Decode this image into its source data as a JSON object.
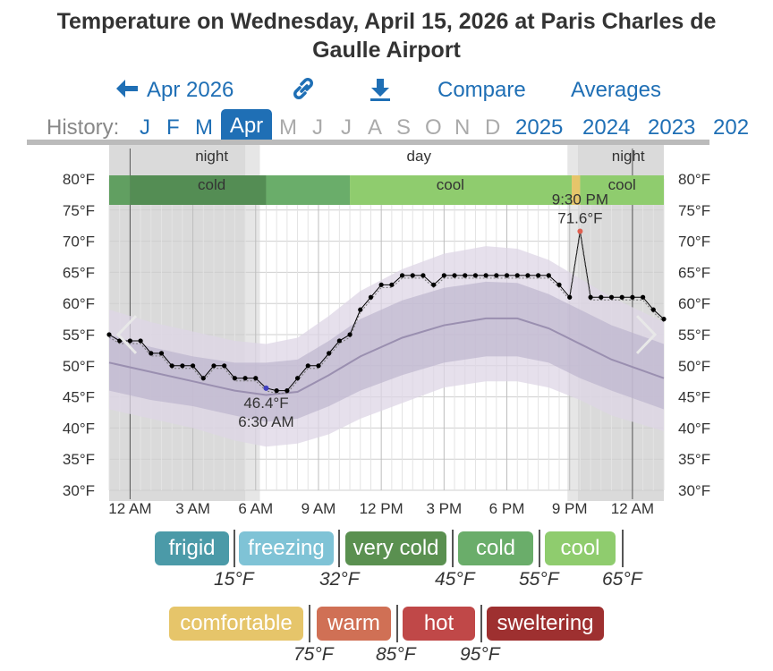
{
  "title_line1": "Temperature on Wednesday, April 15, 2026 at Paris Charles de",
  "title_line2": "Gaulle Airport",
  "nav": {
    "back_label": "Apr 2026",
    "compare_label": "Compare",
    "averages_label": "Averages",
    "link_icon": "link-icon",
    "download_icon": "download-icon"
  },
  "history": {
    "label": "History:",
    "months": [
      "J",
      "F",
      "M",
      "Apr",
      "M",
      "J",
      "J",
      "A",
      "S",
      "O",
      "N",
      "D"
    ],
    "selected": "Apr",
    "years": [
      "2025",
      "2024",
      "2023",
      "202"
    ]
  },
  "colors": {
    "link": "#1f6fb5",
    "night_band": "#d3d3d3",
    "observed": "#000000",
    "normal_line": "#9a8fb0",
    "band_inner": "#b8afc9",
    "band_outer": "#ddd6e6",
    "max_marker": "#e06050",
    "min_marker": "#4040c0"
  },
  "chart_data": {
    "type": "line",
    "title": "Temperature on Wednesday, April 15, 2026 at Paris Charles de Gaulle Airport",
    "ylabel": "",
    "ylim": [
      30,
      80
    ],
    "x_unit": "hours since 11 PM Apr 14",
    "y_ticks": [
      "30°F",
      "35°F",
      "40°F",
      "45°F",
      "50°F",
      "55°F",
      "60°F",
      "65°F",
      "70°F",
      "75°F",
      "80°F"
    ],
    "x_ticks": [
      {
        "label": "12 AM",
        "hour": 1
      },
      {
        "label": "3 AM",
        "hour": 4
      },
      {
        "label": "6 AM",
        "hour": 7
      },
      {
        "label": "9 AM",
        "hour": 10
      },
      {
        "label": "12 PM",
        "hour": 13
      },
      {
        "label": "3 PM",
        "hour": 16
      },
      {
        "label": "6 PM",
        "hour": 19
      },
      {
        "label": "9 PM",
        "hour": 22
      },
      {
        "label": "12 AM",
        "hour": 25
      }
    ],
    "observed": [
      [
        0,
        55
      ],
      [
        0.5,
        54
      ],
      [
        1,
        54
      ],
      [
        1.5,
        54
      ],
      [
        2,
        52
      ],
      [
        2.5,
        52
      ],
      [
        3,
        50
      ],
      [
        3.5,
        50
      ],
      [
        4,
        50
      ],
      [
        4.5,
        48
      ],
      [
        5,
        50
      ],
      [
        5.5,
        50
      ],
      [
        6,
        48
      ],
      [
        6.5,
        48
      ],
      [
        7,
        48
      ],
      [
        7.5,
        46.4
      ],
      [
        8,
        46
      ],
      [
        8.5,
        46
      ],
      [
        9,
        48
      ],
      [
        9.5,
        50
      ],
      [
        10,
        50
      ],
      [
        10.5,
        52
      ],
      [
        11,
        54
      ],
      [
        11.5,
        55
      ],
      [
        12,
        59
      ],
      [
        12.5,
        61
      ],
      [
        13,
        63
      ],
      [
        13.5,
        63
      ],
      [
        14,
        64.5
      ],
      [
        14.5,
        64.5
      ],
      [
        15,
        64.5
      ],
      [
        15.5,
        63
      ],
      [
        16,
        64.5
      ],
      [
        16.5,
        64.5
      ],
      [
        17,
        64.5
      ],
      [
        17.5,
        64.5
      ],
      [
        18,
        64.5
      ],
      [
        18.5,
        64.5
      ],
      [
        19,
        64.5
      ],
      [
        19.5,
        64.5
      ],
      [
        20,
        64.5
      ],
      [
        20.5,
        64.5
      ],
      [
        21,
        64.5
      ],
      [
        21.5,
        63
      ],
      [
        22,
        61
      ],
      [
        22.5,
        71.6
      ],
      [
        23,
        61
      ],
      [
        23.5,
        61
      ],
      [
        24,
        61
      ],
      [
        24.5,
        61
      ],
      [
        25,
        61
      ],
      [
        25.5,
        61
      ],
      [
        26,
        59
      ],
      [
        26.5,
        57.5
      ]
    ],
    "normal": [
      [
        0,
        50.5
      ],
      [
        2,
        49
      ],
      [
        4,
        47.5
      ],
      [
        6,
        46
      ],
      [
        7.5,
        45.3
      ],
      [
        9,
        45.8
      ],
      [
        10.5,
        48.5
      ],
      [
        12,
        51.5
      ],
      [
        14,
        54.5
      ],
      [
        16,
        56.5
      ],
      [
        18,
        57.6
      ],
      [
        19.5,
        57.6
      ],
      [
        21,
        56
      ],
      [
        22.5,
        53.5
      ],
      [
        24,
        51
      ],
      [
        26.5,
        48
      ]
    ],
    "band_inner_hi": [
      [
        0,
        55
      ],
      [
        2,
        53
      ],
      [
        4,
        51.5
      ],
      [
        6,
        50.5
      ],
      [
        7.5,
        50.5
      ],
      [
        9,
        51
      ],
      [
        10.5,
        54
      ],
      [
        12,
        57.5
      ],
      [
        14,
        60.5
      ],
      [
        16,
        62.5
      ],
      [
        18,
        63.5
      ],
      [
        19.5,
        63.3
      ],
      [
        21,
        61.5
      ],
      [
        22.5,
        59
      ],
      [
        24,
        56.5
      ],
      [
        26.5,
        53.5
      ]
    ],
    "band_inner_lo": [
      [
        0,
        46
      ],
      [
        2,
        44.5
      ],
      [
        4,
        43.5
      ],
      [
        6,
        42
      ],
      [
        7.5,
        41
      ],
      [
        9,
        41.5
      ],
      [
        10.5,
        43.5
      ],
      [
        12,
        46
      ],
      [
        14,
        48.5
      ],
      [
        16,
        50.5
      ],
      [
        18,
        51.5
      ],
      [
        19.5,
        51.5
      ],
      [
        21,
        50.5
      ],
      [
        22.5,
        48
      ],
      [
        24,
        46
      ],
      [
        26.5,
        43
      ]
    ],
    "band_outer_hi": [
      [
        0,
        59
      ],
      [
        2,
        57
      ],
      [
        4,
        55.5
      ],
      [
        6,
        54
      ],
      [
        7.5,
        53.5
      ],
      [
        9,
        54.5
      ],
      [
        10.5,
        58
      ],
      [
        12,
        62
      ],
      [
        14,
        65.5
      ],
      [
        16,
        68
      ],
      [
        18,
        69.2
      ],
      [
        19.5,
        68.8
      ],
      [
        21,
        67
      ],
      [
        22.5,
        64
      ],
      [
        24,
        61
      ],
      [
        26.5,
        57
      ]
    ],
    "band_outer_lo": [
      [
        0,
        43
      ],
      [
        2,
        41.5
      ],
      [
        4,
        40
      ],
      [
        6,
        38
      ],
      [
        7.5,
        37
      ],
      [
        9,
        37.5
      ],
      [
        10.5,
        39
      ],
      [
        12,
        41.5
      ],
      [
        14,
        44
      ],
      [
        16,
        46.5
      ],
      [
        18,
        47.5
      ],
      [
        19.5,
        47.5
      ],
      [
        21,
        46.5
      ],
      [
        22.5,
        44.5
      ],
      [
        24,
        42
      ],
      [
        26.5,
        39.5
      ]
    ],
    "annotations": {
      "max_value": "9:30 PM",
      "max_temp": "71.6°F",
      "min_temp": "46.4°F",
      "min_time": "6:30 AM"
    },
    "daylight": [
      "night",
      "day",
      "night"
    ],
    "conditions": [
      "cold",
      "cool",
      "cool"
    ]
  },
  "legend": {
    "categories": [
      {
        "label": "frigid",
        "color": "#4b9aa8"
      },
      {
        "label": "freezing",
        "color": "#7fc3d6"
      },
      {
        "label": "very cold",
        "color": "#5a9050"
      },
      {
        "label": "cold",
        "color": "#6aad6a"
      },
      {
        "label": "cool",
        "color": "#8fcc6e"
      },
      {
        "label": "comfortable",
        "color": "#e6c56a"
      },
      {
        "label": "warm",
        "color": "#d07055"
      },
      {
        "label": "hot",
        "color": "#c04848"
      },
      {
        "label": "sweltering",
        "color": "#9e3030"
      }
    ],
    "thresholds": [
      "15°F",
      "32°F",
      "45°F",
      "55°F",
      "65°F",
      "75°F",
      "85°F",
      "95°F"
    ]
  }
}
